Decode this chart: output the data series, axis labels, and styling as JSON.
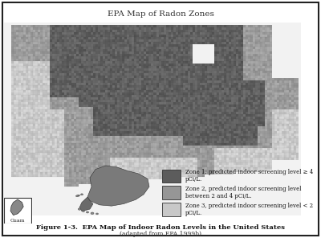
{
  "title": "EPA Map of Radon Zones",
  "caption_line1": "Figure 1-3.  EPA Map of Indoor Radon Levels in the United States",
  "caption_line2": "(adapted from EPA 1999b)",
  "legend_items": [
    {
      "label": "Zone 1, predicted indoor screening level > 4 pCi/L.",
      "color_dark": "#5a5a5a"
    },
    {
      "label": "Zone 2, predicted indoor screening level between 2 and 4 pCi/L.",
      "color_mid": "#8c8c8c"
    },
    {
      "label": "Zone 3, predicted indoor screening level < 2 pCi/L.",
      "color_light": "#c0c0c0"
    }
  ],
  "legend_colors": [
    "#5c5c5c",
    "#969696",
    "#c8c8c8"
  ],
  "bg_color": "#f5f5f5",
  "border_color": "#1a1a1a",
  "outside_color": "#f0f0f0",
  "guam_label": "Guam"
}
